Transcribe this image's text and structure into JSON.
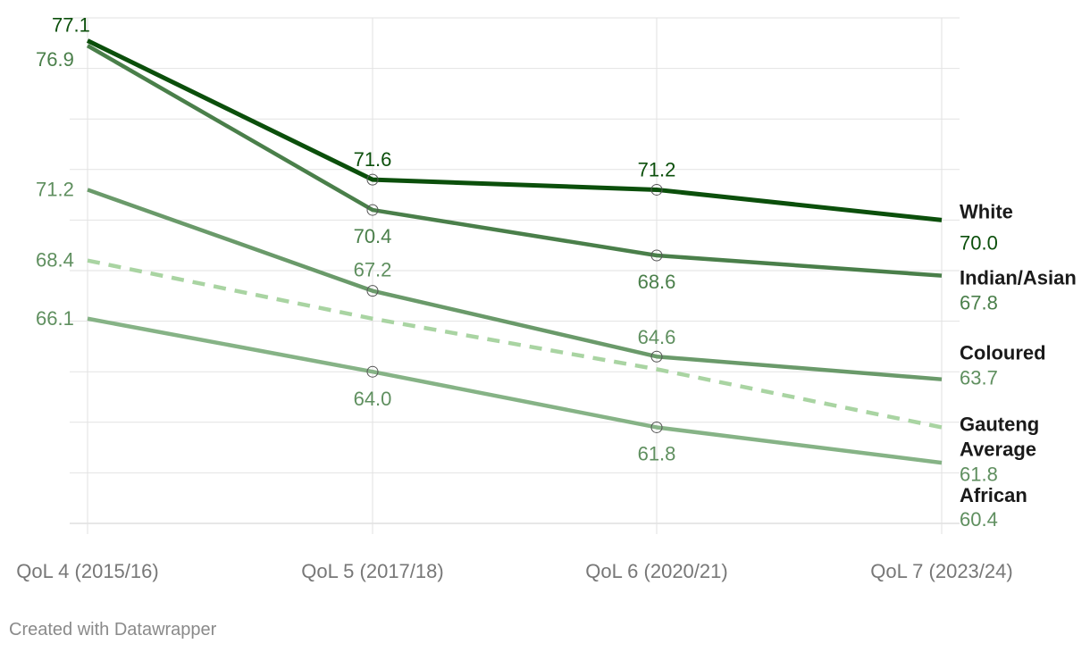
{
  "chart_data": {
    "type": "line",
    "title": "",
    "xlabel": "",
    "ylabel": "",
    "categories": [
      "QoL 4 (2015/16)",
      "QoL 5 (2017/18)",
      "QoL 6 (2020/21)",
      "QoL 7 (2023/24)"
    ],
    "ylim": [
      58,
      78
    ],
    "grid": true,
    "series": [
      {
        "name": "White",
        "values": [
          77.1,
          71.6,
          71.2,
          70.0
        ],
        "labels": [
          "77.1",
          "71.6",
          "71.2",
          "70.0"
        ],
        "color": "#0b4f0b",
        "label_color": "#0b4f0b",
        "dashed": false
      },
      {
        "name": "Indian/Asian",
        "values": [
          76.9,
          70.4,
          68.6,
          67.8
        ],
        "labels": [
          "76.9",
          "70.4",
          "68.6",
          "67.8"
        ],
        "color": "#4a7f4a",
        "label_color": "#4a7f4a",
        "dashed": false
      },
      {
        "name": "Coloured",
        "values": [
          71.2,
          67.2,
          64.6,
          63.7
        ],
        "labels": [
          "71.2",
          "67.2",
          "64.6",
          "63.7"
        ],
        "color": "#6a9a6a",
        "label_color": "#5f8f5f",
        "dashed": false
      },
      {
        "name": "Gauteng Average",
        "values": [
          68.4,
          66.1,
          64.1,
          61.8
        ],
        "labels": [
          "68.4",
          "",
          "",
          "61.8"
        ],
        "color": "#a9d4a2",
        "label_color": "#5f8f5f",
        "dashed": true
      },
      {
        "name": "African",
        "values": [
          66.1,
          64.0,
          61.8,
          60.4
        ],
        "labels": [
          "66.1",
          "64.0",
          "61.8",
          "60.4"
        ],
        "color": "#86b386",
        "label_color": "#5f8f5f",
        "dashed": false
      }
    ],
    "series_label_lines": {
      "White": [
        "White"
      ],
      "Indian/Asian": [
        "Indian/Asian"
      ],
      "Coloured": [
        "Coloured"
      ],
      "Gauteng Average": [
        "Gauteng",
        "Average"
      ],
      "African": [
        "African"
      ]
    }
  },
  "credit": "Created with Datawrapper"
}
